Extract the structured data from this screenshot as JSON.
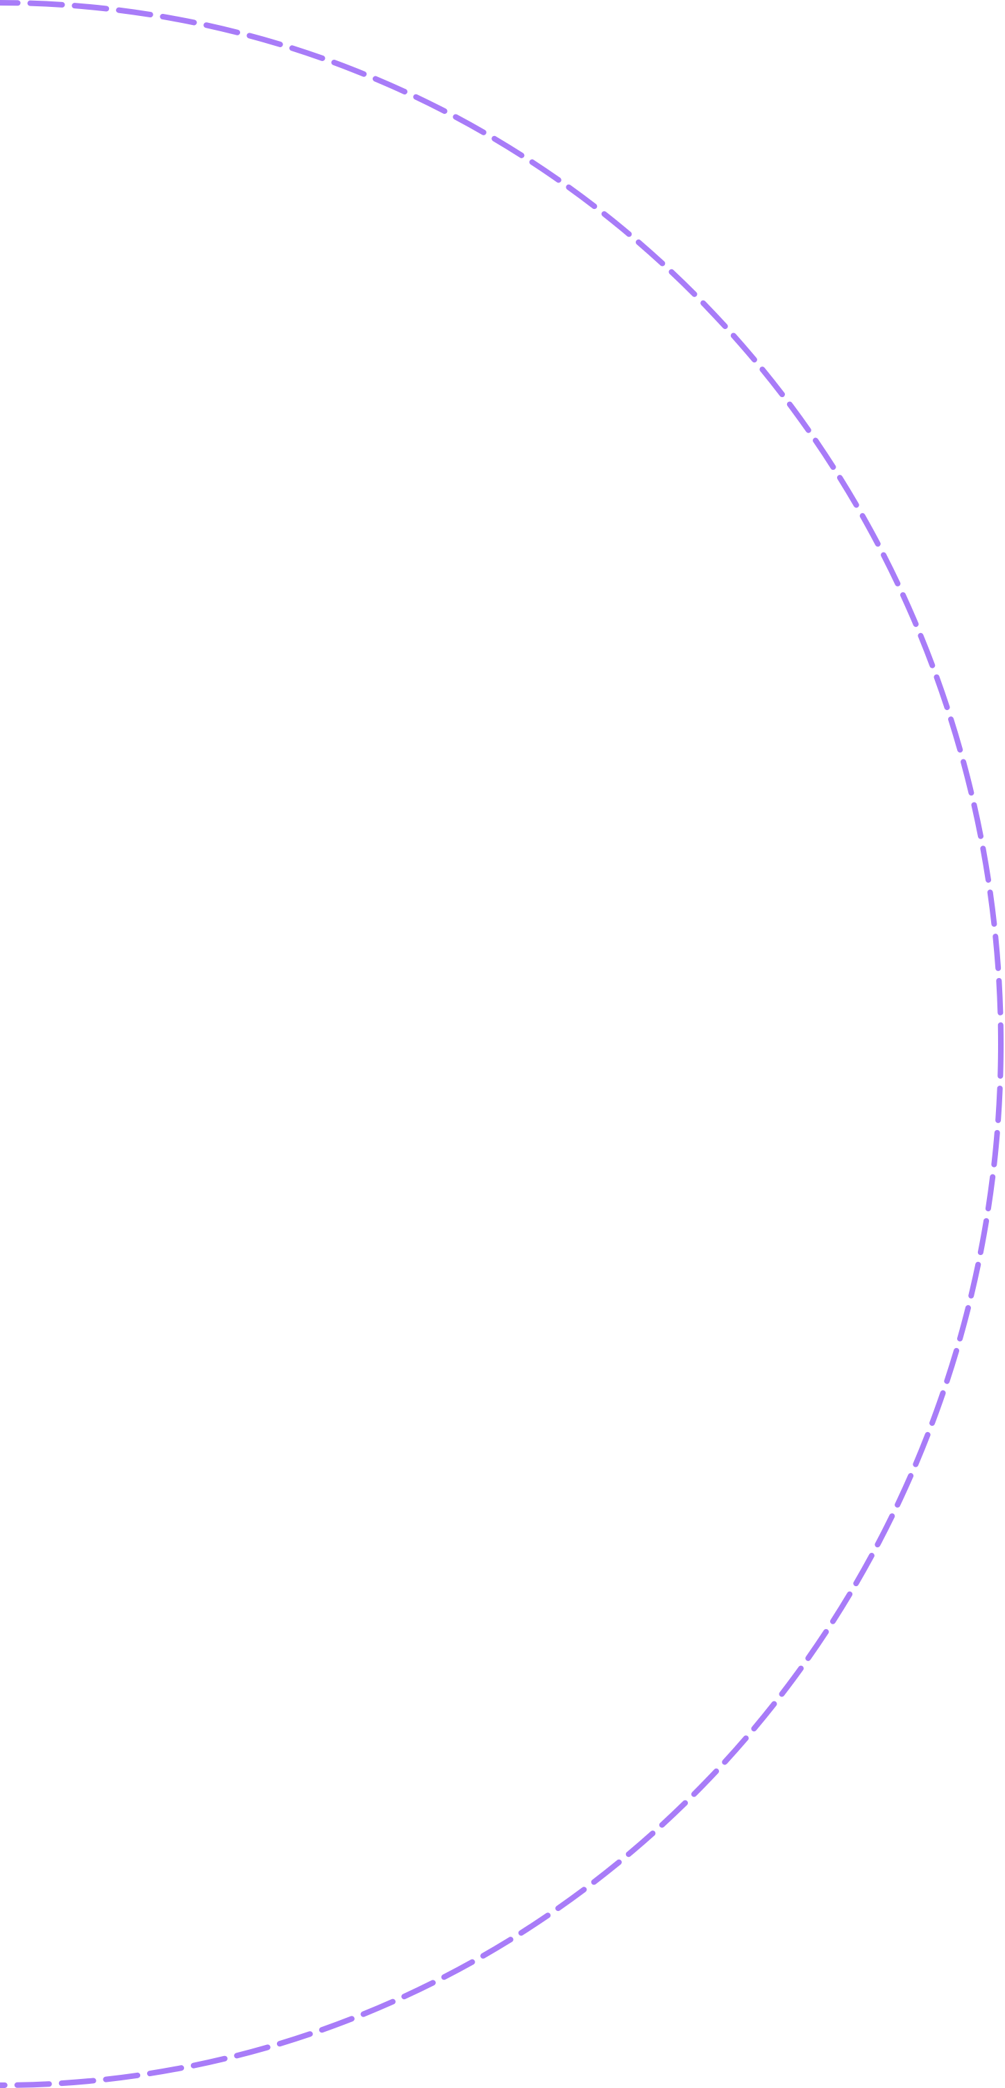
{
  "shape": {
    "type": "dashed-arc",
    "stroke_color": "#a87cf8",
    "background": "#ffffff"
  }
}
